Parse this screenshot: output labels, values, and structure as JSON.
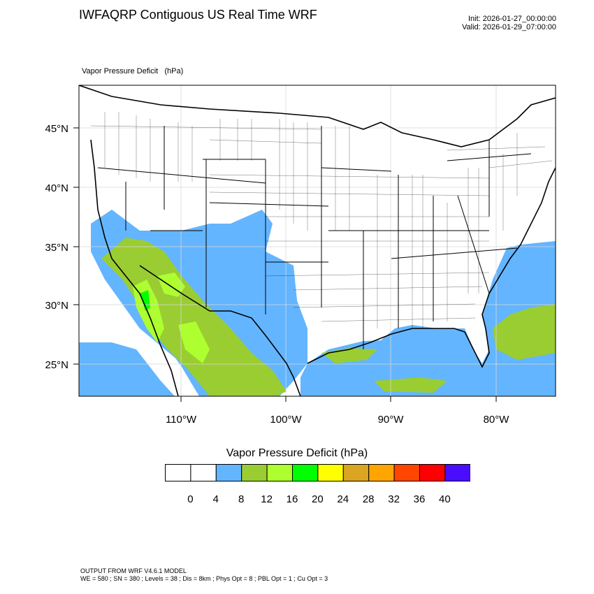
{
  "header": {
    "title": "IWFAQRP Contiguous US Real Time WRF",
    "init": "Init: 2026-01-27_00:00:00",
    "valid": "Valid: 2026-01-29_07:00:00",
    "field": "Vapor Pressure Deficit   (hPa)"
  },
  "map": {
    "latitude_labels": [
      "45°N",
      "40°N",
      "35°N",
      "30°N",
      "25°N"
    ],
    "longitude_labels": [
      "110°W",
      "100°W",
      "90°W",
      "80°W"
    ],
    "ocean_fill_class": "4-8",
    "colors": {
      "land_bg": "#ffffff",
      "boundary": "#000000"
    }
  },
  "colorbar": {
    "title": "Vapor Pressure Deficit  (hPa)",
    "labels": [
      "0",
      "4",
      "8",
      "12",
      "16",
      "20",
      "24",
      "28",
      "32",
      "36",
      "40"
    ],
    "colors": [
      "#ffffff",
      "#ffffff",
      "#63b5ff",
      "#9acd32",
      "#adff2f",
      "#00ff00",
      "#ffff00",
      "#daa520",
      "#ffa500",
      "#ff4500",
      "#ff0000",
      "#4b0dff"
    ]
  },
  "footer": {
    "line1": "OUTPUT FROM WRF V4.6.1 MODEL",
    "line2": "WE = 580 ; SN = 380 ; Levels = 38 ; Dis = 8km ; Phys Opt = 8 ; PBL Opt = 1 ; Cu Opt = 3"
  }
}
